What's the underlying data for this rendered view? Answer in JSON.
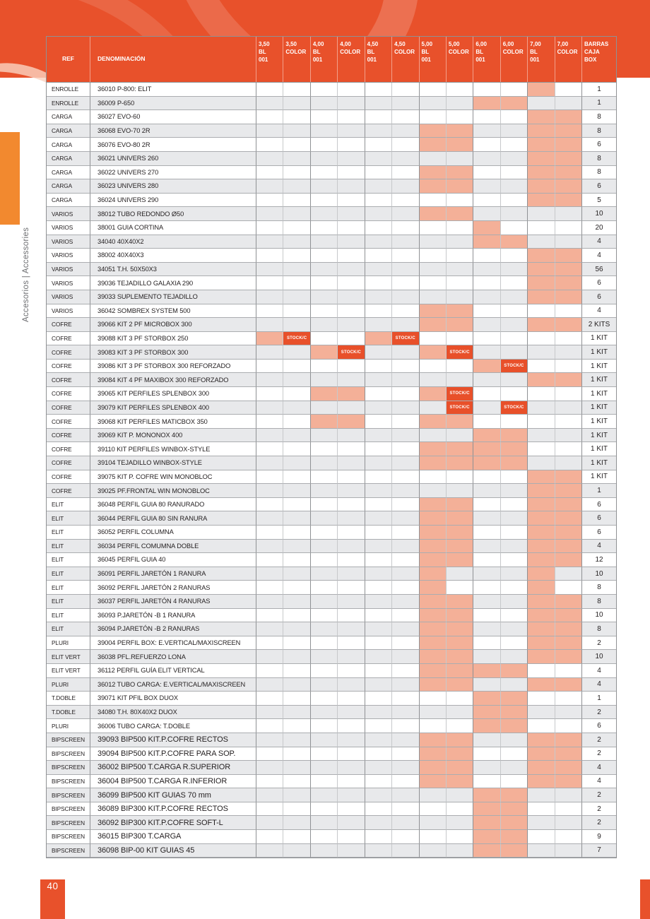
{
  "page": {
    "number": "40",
    "sidebar_label": "Accesorios | Accessories"
  },
  "colors": {
    "accent_orange": "#E8512B",
    "stock_orange": "#E8502A",
    "highlight_salmon": "#F4B098",
    "row_stripe_grey": "#E8E9EB",
    "sidebar_orange": "#F2892F",
    "text_dark": "#231F20"
  },
  "table": {
    "stock_label": "STOCK/C",
    "headers": {
      "ref": "REF",
      "denominacion": "DENOMINACIÓN",
      "sizes": [
        "3,50\nBL\n001",
        "3,50\nCOLOR",
        "4,00\nBL\n001",
        "4,00\nCOLOR",
        "4,50\nBL\n001",
        "4,50\nCOLOR",
        "5,00\nBL\n001",
        "5,00\nCOLOR",
        "6,00\nBL\n001",
        "6,00\nCOLOR",
        "7,00\nBL\n001",
        "7,00\nCOLOR"
      ],
      "barras": "BARRAS\nCAJA\nBOX"
    },
    "rows": [
      {
        "ref": "ENROLLE",
        "den": "36010 P-800: ELIT",
        "hl": [
          11
        ],
        "stock": [],
        "box": "1"
      },
      {
        "ref": "ENROLLE",
        "den": "36009 P-650",
        "hl": [
          9,
          10
        ],
        "stock": [],
        "box": "1"
      },
      {
        "ref": "CARGA",
        "den": "36027 EVO-60",
        "hl": [
          11,
          12
        ],
        "stock": [],
        "box": "8"
      },
      {
        "ref": "CARGA",
        "den": "36068 EVO-70 2R",
        "hl": [
          7,
          8,
          11,
          12
        ],
        "stock": [],
        "box": "8"
      },
      {
        "ref": "CARGA",
        "den": "36076 EVO-80 2R",
        "hl": [
          7,
          8,
          11,
          12
        ],
        "stock": [],
        "box": "6"
      },
      {
        "ref": "CARGA",
        "den": "36021 UNIVERS 260",
        "hl": [
          11,
          12
        ],
        "stock": [],
        "box": "8"
      },
      {
        "ref": "CARGA",
        "den": "36022 UNIVERS 270",
        "hl": [
          7,
          8,
          11,
          12
        ],
        "stock": [],
        "box": "8"
      },
      {
        "ref": "CARGA",
        "den": "36023 UNIVERS 280",
        "hl": [
          7,
          8,
          11,
          12
        ],
        "stock": [],
        "box": "6"
      },
      {
        "ref": "CARGA",
        "den": "36024 UNIVERS 290",
        "hl": [
          11,
          12
        ],
        "stock": [],
        "box": "5"
      },
      {
        "ref": "VARIOS",
        "den": "38012 TUBO REDONDO Ø50",
        "hl": [
          7,
          8
        ],
        "stock": [],
        "box": "10"
      },
      {
        "ref": "VARIOS",
        "den": "38001 GUIA CORTINA",
        "hl": [
          9
        ],
        "stock": [],
        "box": "20"
      },
      {
        "ref": "VARIOS",
        "den": "34040 40X40X2",
        "hl": [
          9,
          10
        ],
        "stock": [],
        "box": "4"
      },
      {
        "ref": "VARIOS",
        "den": "38002 40X40X3",
        "hl": [
          11,
          12
        ],
        "stock": [],
        "box": "4"
      },
      {
        "ref": "VARIOS",
        "den": "34051 T.H. 50X50X3",
        "hl": [
          11,
          12
        ],
        "stock": [],
        "box": "56"
      },
      {
        "ref": "VARIOS",
        "den": "39036 TEJADILLO GALAXIA 290",
        "hl": [
          11,
          12
        ],
        "stock": [],
        "box": "6"
      },
      {
        "ref": "VARIOS",
        "den": "39033 SUPLEMENTO TEJADILLO",
        "hl": [
          11,
          12
        ],
        "stock": [],
        "box": "6"
      },
      {
        "ref": "VARIOS",
        "den": "36042 SOMBREX SYSTEM 500",
        "hl": [
          7,
          8
        ],
        "stock": [],
        "box": "4"
      },
      {
        "ref": "COFRE",
        "den": "39066 KIT 2 PF MICROBOX 300",
        "hl": [
          7,
          8,
          11,
          12
        ],
        "stock": [],
        "box": "2 KITS"
      },
      {
        "ref": "COFRE",
        "den": "39088 KIT 3 PF STORBOX 250",
        "hl": [
          1,
          5
        ],
        "stock": [
          2,
          6
        ],
        "box": "1 KIT"
      },
      {
        "ref": "COFRE",
        "den": "39083 KIT 3 PF STORBOX 300",
        "hl": [
          3,
          7
        ],
        "stock": [
          4,
          8
        ],
        "box": "1 KIT"
      },
      {
        "ref": "COFRE",
        "den": "39086 KIT 3 PF STORBOX 300 REFORZADO",
        "hl": [
          9
        ],
        "stock": [
          10
        ],
        "box": "1 KIT"
      },
      {
        "ref": "COFRE",
        "den": "39084 KIT 4 PF MAXIBOX 300 REFORZADO",
        "hl": [
          11,
          12
        ],
        "stock": [],
        "box": "1 KIT"
      },
      {
        "ref": "COFRE",
        "den": "39065 KIT PERFILES SPLENBOX 300",
        "hl": [
          3,
          4,
          7
        ],
        "stock": [
          8
        ],
        "box": "1 KIT"
      },
      {
        "ref": "COFRE",
        "den": "39079 KIT PERFILES SPLENBOX 400",
        "hl": [],
        "stock": [
          8,
          10
        ],
        "box": "1 KIT"
      },
      {
        "ref": "COFRE",
        "den": "39068 KIT PERFILES MATICBOX 350",
        "hl": [
          3,
          4,
          7,
          8
        ],
        "stock": [],
        "box": "1 KIT"
      },
      {
        "ref": "COFRE",
        "den": "39069 KIT P. MONONOX 400",
        "hl": [
          9,
          10
        ],
        "stock": [],
        "box": "1 KIT"
      },
      {
        "ref": "COFRE",
        "den": "39110 KIT PERFILES WINBOX-STYLE",
        "hl": [
          7,
          8,
          9,
          10
        ],
        "stock": [],
        "box": "1 KIT"
      },
      {
        "ref": "COFRE",
        "den": "39104 TEJADILLO WINBOX-STYLE",
        "hl": [
          7,
          8,
          9,
          10
        ],
        "stock": [],
        "box": "1 KIT"
      },
      {
        "ref": "COFRE",
        "den": "39075 KIT P. COFRE WIN MONOBLOC",
        "hl": [
          11,
          12
        ],
        "stock": [],
        "box": "1 KIT"
      },
      {
        "ref": "COFRE",
        "den": "39025 PF.FRONTAL WIN MONOBLOC",
        "hl": [
          11,
          12
        ],
        "stock": [],
        "box": "1"
      },
      {
        "ref": "ELIT",
        "den": "36048 PERFIL GUIA 80 RANURADO",
        "hl": [
          7,
          8,
          11,
          12
        ],
        "stock": [],
        "box": "6"
      },
      {
        "ref": "ELIT",
        "den": "36044 PERFIL GUIA 80 SIN RANURA",
        "hl": [
          7,
          8,
          11,
          12
        ],
        "stock": [],
        "box": "6"
      },
      {
        "ref": "ELIT",
        "den": "36052 PERFIL COLUMNA",
        "hl": [
          7,
          8,
          11,
          12
        ],
        "stock": [],
        "box": "6"
      },
      {
        "ref": "ELIT",
        "den": "36034 PERFIL COMUMNA DOBLE",
        "hl": [
          7,
          8,
          11,
          12
        ],
        "stock": [],
        "box": "4"
      },
      {
        "ref": "ELIT",
        "den": "36045 PERFIL GUIA 40",
        "hl": [
          7,
          8,
          11,
          12
        ],
        "stock": [],
        "box": "12"
      },
      {
        "ref": "ELIT",
        "den": "36091 PERFIL JARETÓN 1 RANURA",
        "hl": [
          7,
          11
        ],
        "stock": [],
        "box": "10"
      },
      {
        "ref": "ELIT",
        "den": "36092 PERFIL JARETÓN 2 RANURAS",
        "hl": [
          7,
          11
        ],
        "stock": [],
        "box": "8"
      },
      {
        "ref": "ELIT",
        "den": "36037 PERFIL JARETÓN 4 RANURAS",
        "hl": [
          7,
          8,
          11,
          12
        ],
        "stock": [],
        "box": "8"
      },
      {
        "ref": "ELIT",
        "den": "36093 P.JARETÓN -B 1 RANURA",
        "hl": [
          7,
          8,
          11,
          12
        ],
        "stock": [],
        "box": "10"
      },
      {
        "ref": "ELIT",
        "den": "36094 P.JARETÓN -B 2 RANURAS",
        "hl": [
          7,
          8,
          11,
          12
        ],
        "stock": [],
        "box": "8"
      },
      {
        "ref": "PLURI",
        "den": "39004 PERFIL BOX: E.VERTICAL/MAXISCREEN",
        "hl": [
          7,
          8,
          11,
          12
        ],
        "stock": [],
        "box": "2"
      },
      {
        "ref": "ELIT VERT",
        "den": "36038 PFL.REFUERZO LONA",
        "hl": [
          7,
          8,
          11,
          12
        ],
        "stock": [],
        "box": "10"
      },
      {
        "ref": "ELIT VERT",
        "den": "36112 PERFIL GUÍA ELIT VERTICAL",
        "hl": [
          7,
          8,
          9,
          10
        ],
        "stock": [],
        "box": "4"
      },
      {
        "ref": "PLURI",
        "den": "36012 TUBO CARGA: E.VERTICAL/MAXISCREEN",
        "hl": [
          7,
          8,
          11,
          12
        ],
        "stock": [],
        "box": "4"
      },
      {
        "ref": "T.DOBLE",
        "den": "39071 KIT PFIL BOX DUOX",
        "hl": [
          9,
          10
        ],
        "stock": [],
        "box": "1"
      },
      {
        "ref": "T.DOBLE",
        "den": "34080 T.H. 80X40X2 DUOX",
        "hl": [
          9,
          10
        ],
        "stock": [],
        "box": "2"
      },
      {
        "ref": "PLURI",
        "den": "36006 TUBO CARGA: T.DOBLE",
        "hl": [
          9,
          10
        ],
        "stock": [],
        "box": "6"
      },
      {
        "ref": "BIPSCREEN",
        "den": "39093 BIP500 KIT.P.COFRE RECTOS",
        "hl": [
          7,
          8,
          11,
          12
        ],
        "stock": [],
        "box": "2"
      },
      {
        "ref": "BIPSCREEN",
        "den": "39094 BIP500 KIT.P.COFRE PARA SOP.",
        "hl": [
          7,
          8,
          11,
          12
        ],
        "stock": [],
        "box": "2"
      },
      {
        "ref": "BIPSCREEN",
        "den": "36002 BIP500 T.CARGA R.SUPERIOR",
        "hl": [
          7,
          8,
          11,
          12
        ],
        "stock": [],
        "box": "4"
      },
      {
        "ref": "BIPSCREEN",
        "den": "36004 BIP500 T.CARGA R.INFERIOR",
        "hl": [
          7,
          8,
          11,
          12
        ],
        "stock": [],
        "box": "4"
      },
      {
        "ref": "BIPSCREEN",
        "den": "36099 BIP500 KIT GUIAS 70 mm",
        "hl": [
          9,
          10
        ],
        "stock": [],
        "box": "2"
      },
      {
        "ref": "BIPSCREEN",
        "den": "36089 BIP300 KIT.P.COFRE RECTOS",
        "hl": [
          9,
          10
        ],
        "stock": [],
        "box": "2"
      },
      {
        "ref": "BIPSCREEN",
        "den": "36092 BIP300 KIT.P.COFRE SOFT-L",
        "hl": [
          9,
          10
        ],
        "stock": [],
        "box": "2"
      },
      {
        "ref": "BIPSCREEN",
        "den": "36015 BIP300 T.CARGA",
        "hl": [
          9,
          10
        ],
        "stock": [],
        "box": "9"
      },
      {
        "ref": "BIPSCREEN",
        "den": "36098 BIP-00 KIT GUIAS 45",
        "hl": [
          9,
          10
        ],
        "stock": [],
        "box": "7"
      }
    ]
  }
}
